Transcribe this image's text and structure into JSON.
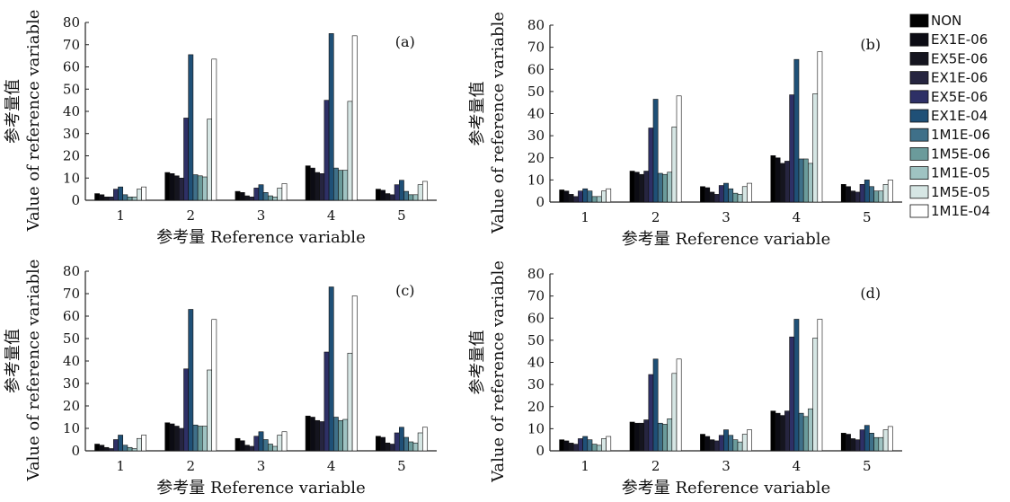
{
  "figure": {
    "legend": {
      "entries": [
        "NON",
        "EX1E-06",
        "EX5E-06",
        "EX1E-06",
        "EX5E-06",
        "EX1E-04",
        "1M1E-06",
        "1M5E-06",
        "1M1E-05",
        "1M5E-05",
        "1M1E-04"
      ],
      "colors": [
        "#000000",
        "#0c0c14",
        "#15151f",
        "#262540",
        "#2e3066",
        "#1f5077",
        "#3f7089",
        "#6b9b9b",
        "#9fc3c2",
        "#d6e6e4",
        "#ffffff"
      ]
    }
  },
  "chart_data": [
    {
      "type": "bar",
      "panel_label": "(a)",
      "xlabel": "参考量 Reference variable",
      "ylabel_cn": "参考量值",
      "ylabel": "Value of reference variable",
      "ylim": [
        0,
        80
      ],
      "yticks": [
        "0",
        "10",
        "20",
        "30",
        "40",
        "50",
        "60",
        "70",
        "80"
      ],
      "categories": [
        "1",
        "2",
        "3",
        "4",
        "5"
      ],
      "series_values": [
        [
          3,
          12.5,
          4,
          15.5,
          5
        ],
        [
          2.5,
          12,
          3.5,
          14.5,
          4.5
        ],
        [
          1.5,
          11,
          2,
          12.5,
          3
        ],
        [
          1.5,
          10,
          1.5,
          12,
          2.5
        ],
        [
          5,
          37,
          5.5,
          45,
          7
        ],
        [
          6,
          65.5,
          7,
          75,
          9
        ],
        [
          2.5,
          11.5,
          3.5,
          14.5,
          4
        ],
        [
          1.5,
          11,
          2,
          13.5,
          2.5
        ],
        [
          1.5,
          10.5,
          1.5,
          13.5,
          2.5
        ],
        [
          5,
          36.5,
          5.5,
          44.5,
          7
        ],
        [
          6,
          63.5,
          7.5,
          74,
          8.5
        ]
      ]
    },
    {
      "type": "bar",
      "panel_label": "(b)",
      "xlabel": "参考量 Reference variable",
      "ylabel_cn": "参考量值",
      "ylabel": "Value of reference variable",
      "ylim": [
        0,
        80
      ],
      "yticks": [
        "0",
        "10",
        "20",
        "30",
        "40",
        "50",
        "60",
        "70",
        "80"
      ],
      "categories": [
        "1",
        "2",
        "3",
        "4",
        "5"
      ],
      "series_values": [
        [
          5.5,
          14,
          7,
          21,
          8
        ],
        [
          5,
          13.5,
          6.5,
          20,
          7
        ],
        [
          3.5,
          12.5,
          4.5,
          17.5,
          5
        ],
        [
          2.5,
          14,
          3.5,
          18.5,
          4.5
        ],
        [
          5,
          33.5,
          7.5,
          48.5,
          8
        ],
        [
          6,
          46.5,
          8.5,
          64.5,
          10
        ],
        [
          5,
          13,
          6,
          19.5,
          7
        ],
        [
          2.5,
          12.5,
          4,
          19.5,
          5
        ],
        [
          2.5,
          13.5,
          3.5,
          17.5,
          5
        ],
        [
          5,
          34,
          7,
          49,
          8
        ],
        [
          6,
          48,
          8.5,
          68,
          10
        ]
      ]
    },
    {
      "type": "bar",
      "panel_label": "(c)",
      "xlabel": "参考量 Reference variable",
      "ylabel_cn": "参考量值",
      "ylabel": "Value of reference variable",
      "ylim": [
        0,
        80
      ],
      "yticks": [
        "0",
        "10",
        "20",
        "30",
        "40",
        "50",
        "60",
        "70",
        "80"
      ],
      "categories": [
        "1",
        "2",
        "3",
        "4",
        "5"
      ],
      "series_values": [
        [
          3,
          12.5,
          5.5,
          15.5,
          6.5
        ],
        [
          2.5,
          12,
          4.5,
          15,
          6
        ],
        [
          1.5,
          11,
          2.5,
          13.5,
          3.5
        ],
        [
          1,
          10,
          2,
          13,
          3
        ],
        [
          5,
          36.5,
          6.5,
          44,
          8
        ],
        [
          7,
          63,
          8.5,
          73,
          10.5
        ],
        [
          2.5,
          11.5,
          5,
          15,
          6
        ],
        [
          1.5,
          11,
          3,
          13.5,
          4
        ],
        [
          1,
          11,
          2,
          14,
          3.5
        ],
        [
          5.5,
          36,
          7,
          43.5,
          8
        ],
        [
          7,
          58.5,
          8.5,
          69,
          10.5
        ]
      ]
    },
    {
      "type": "bar",
      "panel_label": "(d)",
      "xlabel": "参考量 Reference variable",
      "ylabel_cn": "参考量值",
      "ylabel": "Value of reference variable",
      "ylim": [
        0,
        80
      ],
      "yticks": [
        "0",
        "10",
        "20",
        "30",
        "40",
        "50",
        "60",
        "70",
        "80"
      ],
      "categories": [
        "1",
        "2",
        "3",
        "4",
        "5"
      ],
      "series_values": [
        [
          5,
          13,
          7.5,
          18,
          8
        ],
        [
          4.5,
          12.5,
          6.5,
          17,
          7.5
        ],
        [
          3.5,
          12.5,
          5,
          16,
          5.5
        ],
        [
          3,
          14,
          4.5,
          18,
          5
        ],
        [
          5.5,
          34.5,
          7,
          51.5,
          9.5
        ],
        [
          6.5,
          41.5,
          9.5,
          59.5,
          11.5
        ],
        [
          5,
          12.5,
          7,
          17,
          8
        ],
        [
          3,
          12,
          5,
          15.5,
          6
        ],
        [
          2.5,
          14.5,
          4,
          19,
          6
        ],
        [
          5.5,
          35,
          7.5,
          51,
          9.5
        ],
        [
          6.5,
          41.5,
          9.5,
          59.5,
          11
        ]
      ]
    }
  ]
}
